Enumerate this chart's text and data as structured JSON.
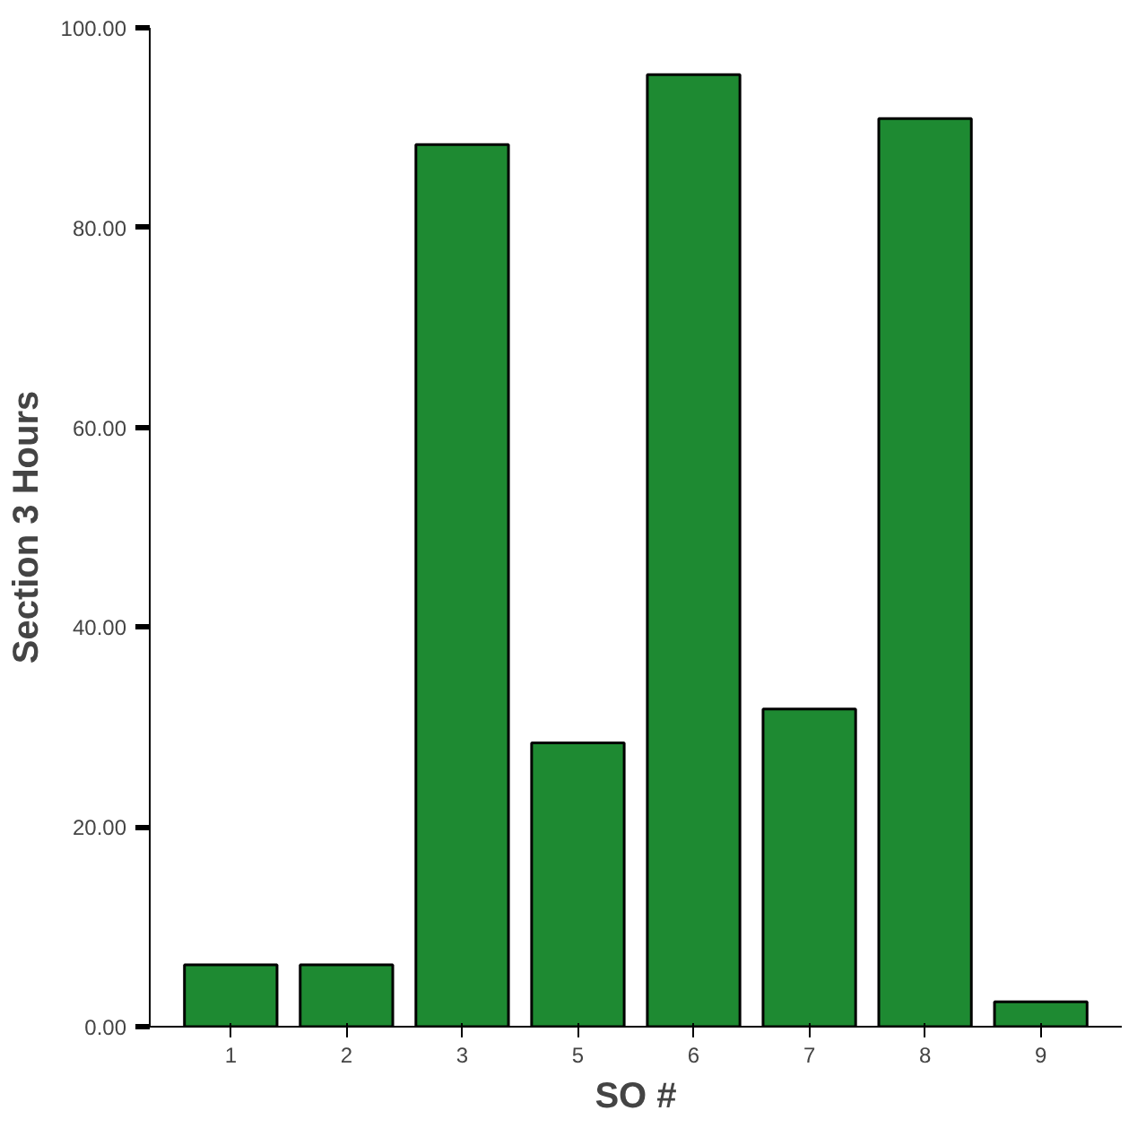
{
  "chart_data": {
    "type": "bar",
    "xlabel": "SO #",
    "ylabel": "Section 3 Hours",
    "categories": [
      "1",
      "2",
      "3",
      "5",
      "6",
      "7",
      "8",
      "9"
    ],
    "values": [
      6.2,
      6.2,
      88.3,
      28.4,
      95.3,
      31.8,
      90.9,
      2.5
    ],
    "color": "#1e8a32",
    "ylim": [
      0,
      100
    ],
    "yticks": [
      {
        "value": 0,
        "label": "0.00"
      },
      {
        "value": 20,
        "label": "20.00"
      },
      {
        "value": 40,
        "label": "40.00"
      },
      {
        "value": 60,
        "label": "60.00"
      },
      {
        "value": 80,
        "label": "80.00"
      },
      {
        "value": 100,
        "label": "100.00"
      }
    ],
    "grid": false
  }
}
